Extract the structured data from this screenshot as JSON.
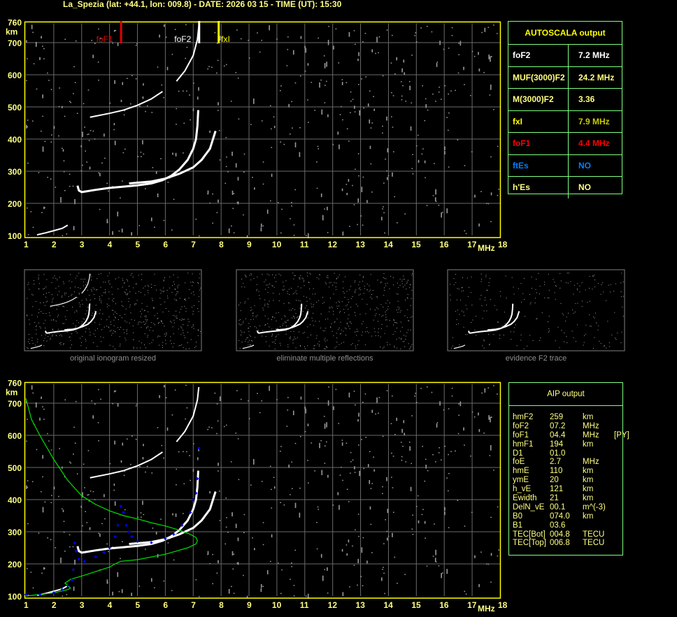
{
  "title": "La_Spezia (lat: +44.1, lon: 009.8) - DATE: 2026 03 15 - TIME (UT): 15:30",
  "colors": {
    "axis": "#ffff00",
    "grid": "#6a6a6a",
    "trace": "#ffffff",
    "noise": "#9a9a9a",
    "foF1_marker": "#e00000",
    "foF2_marker": "#ffffff",
    "fxI_marker": "#ffff00",
    "aip_profile": "#00e000",
    "aip_trace": "#0000ff",
    "table_border": "#80ff80"
  },
  "chart_data": [
    {
      "type": "scatter",
      "xlabel": "MHz",
      "ylabel": "km",
      "xlim": [
        1,
        18
      ],
      "ylim": [
        100,
        760
      ],
      "xticks": [
        "1",
        "2",
        "3",
        "4",
        "5",
        "6",
        "7",
        "8",
        "9",
        "10",
        "11",
        "12",
        "13",
        "14",
        "15",
        "16",
        "17",
        "18"
      ],
      "yticks": [
        "100",
        "200",
        "300",
        "400",
        "500",
        "600",
        "700",
        "760"
      ],
      "grid": true,
      "markers": [
        {
          "label": "foF1",
          "freq": 4.4
        },
        {
          "label": "foF2",
          "freq": 7.2
        },
        {
          "label": "fxI",
          "freq": 7.9
        }
      ],
      "traces": {
        "E": [
          [
            1.4,
            102
          ],
          [
            1.7,
            108
          ],
          [
            2.0,
            115
          ],
          [
            2.3,
            122
          ],
          [
            2.5,
            132
          ]
        ],
        "O": [
          [
            2.85,
            255
          ],
          [
            2.9,
            240
          ],
          [
            3.0,
            235
          ],
          [
            3.5,
            242
          ],
          [
            4.0,
            248
          ],
          [
            4.5,
            252
          ],
          [
            5.0,
            256
          ],
          [
            5.5,
            262
          ],
          [
            5.9,
            272
          ],
          [
            6.2,
            285
          ],
          [
            6.5,
            305
          ],
          [
            6.8,
            335
          ],
          [
            7.0,
            370
          ],
          [
            7.1,
            400
          ],
          [
            7.15,
            440
          ],
          [
            7.18,
            490
          ]
        ],
        "X": [
          [
            4.7,
            262
          ],
          [
            5.5,
            268
          ],
          [
            6.0,
            277
          ],
          [
            6.5,
            292
          ],
          [
            7.0,
            312
          ],
          [
            7.3,
            335
          ],
          [
            7.6,
            370
          ],
          [
            7.8,
            425
          ]
        ],
        "M1": [
          [
            3.3,
            468
          ],
          [
            4.0,
            480
          ],
          [
            4.5,
            490
          ],
          [
            5.0,
            505
          ],
          [
            5.5,
            525
          ],
          [
            5.9,
            548
          ]
        ],
        "M2": [
          [
            6.4,
            580
          ],
          [
            6.7,
            612
          ],
          [
            7.0,
            660
          ],
          [
            7.15,
            710
          ],
          [
            7.2,
            750
          ]
        ]
      }
    },
    {
      "type": "scatter",
      "xlabel": "MHz",
      "ylabel": "km",
      "xlim": [
        1,
        18
      ],
      "ylim": [
        100,
        760
      ],
      "xticks": [
        "1",
        "2",
        "3",
        "4",
        "5",
        "6",
        "7",
        "8",
        "9",
        "10",
        "11",
        "12",
        "13",
        "14",
        "15",
        "16",
        "17",
        "18"
      ],
      "yticks": [
        "100",
        "200",
        "300",
        "400",
        "500",
        "600",
        "700",
        "760"
      ],
      "grid": true,
      "aip_trace": [
        [
          1.0,
          105
        ],
        [
          1.5,
          105
        ],
        [
          2.0,
          110
        ],
        [
          2.3,
          120
        ],
        [
          2.5,
          132
        ],
        [
          2.65,
          150
        ],
        [
          2.7,
          182
        ],
        [
          2.75,
          265
        ],
        [
          2.8,
          240
        ],
        [
          2.9,
          215
        ],
        [
          3.1,
          208
        ],
        [
          3.5,
          222
        ],
        [
          3.8,
          235
        ],
        [
          4.0,
          250
        ],
        [
          4.2,
          285
        ],
        [
          4.3,
          320
        ],
        [
          4.4,
          380
        ],
        [
          4.5,
          360
        ],
        [
          4.6,
          320
        ],
        [
          4.7,
          300
        ],
        [
          4.8,
          285
        ],
        [
          5.0,
          270
        ],
        [
          5.5,
          266
        ],
        [
          6.0,
          278
        ],
        [
          6.3,
          292
        ],
        [
          6.6,
          320
        ],
        [
          6.9,
          360
        ],
        [
          7.0,
          400
        ],
        [
          7.1,
          420
        ],
        [
          7.15,
          465
        ],
        [
          7.2,
          560
        ]
      ],
      "aip_profile": [
        [
          1.0,
          715
        ],
        [
          1.2,
          650
        ],
        [
          1.5,
          600
        ],
        [
          2.0,
          525
        ],
        [
          2.5,
          460
        ],
        [
          3.0,
          412
        ],
        [
          3.5,
          385
        ],
        [
          4.0,
          365
        ],
        [
          4.5,
          350
        ],
        [
          5.0,
          340
        ],
        [
          5.5,
          328
        ],
        [
          6.0,
          318
        ],
        [
          6.5,
          305
        ],
        [
          6.9,
          292
        ],
        [
          7.1,
          282
        ],
        [
          7.15,
          272
        ],
        [
          7.1,
          262
        ],
        [
          6.8,
          250
        ],
        [
          6.0,
          230
        ],
        [
          5.0,
          213
        ],
        [
          4.4,
          208
        ],
        [
          4.2,
          200
        ],
        [
          4.0,
          190
        ],
        [
          3.5,
          176
        ],
        [
          3.0,
          162
        ],
        [
          2.6,
          152
        ],
        [
          2.4,
          140
        ],
        [
          2.6,
          125
        ],
        [
          2.5,
          120
        ],
        [
          2.0,
          110
        ],
        [
          1.0,
          100
        ]
      ]
    }
  ],
  "thumbnails": [
    {
      "caption": "original ionogram resized"
    },
    {
      "caption": "eliminate multiple reflections"
    },
    {
      "caption": "evidence F2 trace"
    }
  ],
  "autoscala": {
    "title": "AUTOSCALA output",
    "rows": [
      {
        "label": "foF2",
        "value": "7.2 MHz",
        "lc": "#ffffff",
        "vc": "#ffffff"
      },
      {
        "label": "MUF(3000)F2",
        "value": "24.2 MHz",
        "lc": "#ffff80",
        "vc": "#ffff80"
      },
      {
        "label": "M(3000)F2",
        "value": "3.36",
        "lc": "#ffff80",
        "vc": "#ffff80"
      },
      {
        "label": "fxI",
        "value": "7.9 MHz",
        "lc": "#ffff00",
        "vc": "#c8c800"
      },
      {
        "label": "foF1",
        "value": "4.4 MHz",
        "lc": "#ff0000",
        "vc": "#ff0000"
      },
      {
        "label": "ftEs",
        "value": "NO",
        "lc": "#0080ff",
        "vc": "#0080ff"
      },
      {
        "label": "h'Es",
        "value": "NO",
        "lc": "#ffff80",
        "vc": "#ffff80"
      }
    ]
  },
  "aip": {
    "title": "AIP output",
    "rows": [
      [
        "hmF2",
        "259",
        "km",
        ""
      ],
      [
        "foF2",
        "07.2",
        "MHz",
        ""
      ],
      [
        "foF1",
        "04.4",
        "MHz",
        "[PY]"
      ],
      [
        "hmF1",
        "194",
        "km",
        ""
      ],
      [
        "D1",
        "01.0",
        "",
        ""
      ],
      [
        "foE",
        "2.7",
        "MHz",
        ""
      ],
      [
        "hmE",
        "110",
        "km",
        ""
      ],
      [
        "ymE",
        "20",
        "km",
        ""
      ],
      [
        "h_vE",
        "121",
        "km",
        ""
      ],
      [
        "Ewidth",
        "21",
        "km",
        ""
      ],
      [
        "DelN_vE",
        "00.1",
        "m^(-3)",
        ""
      ],
      [
        "B0",
        "074.0",
        "km",
        ""
      ],
      [
        "B1",
        "03.6",
        "",
        ""
      ],
      [
        "TEC[Bot]",
        "004.8",
        "TECU",
        ""
      ],
      [
        "TEC[Top]",
        "006.8",
        "TECU",
        ""
      ]
    ]
  }
}
